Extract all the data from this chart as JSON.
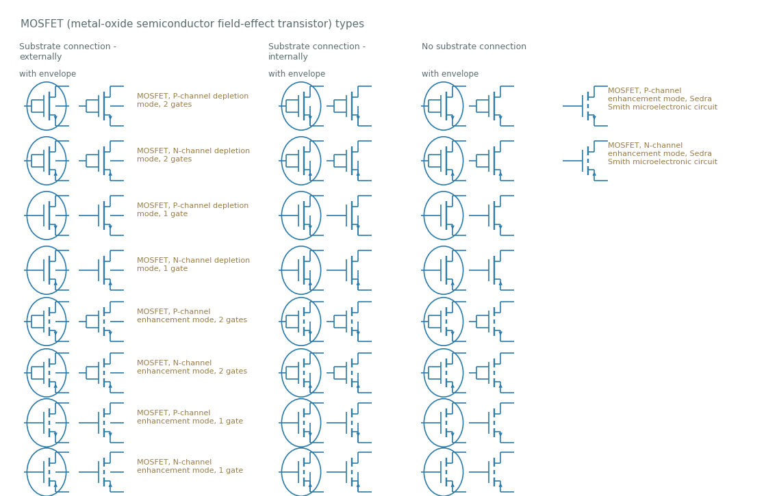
{
  "title": "MOSFET (metal-oxide semiconductor field-effect transistor) types",
  "title_color": "#5c6e6e",
  "symbol_color": "#2a7aaa",
  "text_color": "#5c6e6e",
  "label_color": "#9b7b4a",
  "bg_color": "#ffffff",
  "col1_header": "Substrate connection -\nexternally",
  "col2_header": "Substrate connection -\ninternally",
  "col3_header": "No substrate connection",
  "sub_header": "with envelope",
  "rows": [
    "MOSFET, P-channel depletion\nmode, 2 gates",
    "MOSFET, N-channel depletion\nmode, 2 gates",
    "MOSFET, P-channel depletion\nmode, 1 gate",
    "MOSFET, N-channel depletion\nmode, 1 gate",
    "MOSFET, P-channel\nenhancement mode, 2 gates",
    "MOSFET, N-channel\nenhancement mode, 2 gates",
    "MOSFET, P-channel\nenhancement mode, 1 gate",
    "MOSFET, N-channel\nenhancement mode, 1 gate"
  ],
  "sedra_labels": [
    "MOSFET, P-channel\nenhancement mode, Sedra\nSmith microelectronic circuit",
    "MOSFET, N-channel\nenhancement mode, Sedra\nSmith microelectronic circuit"
  ]
}
